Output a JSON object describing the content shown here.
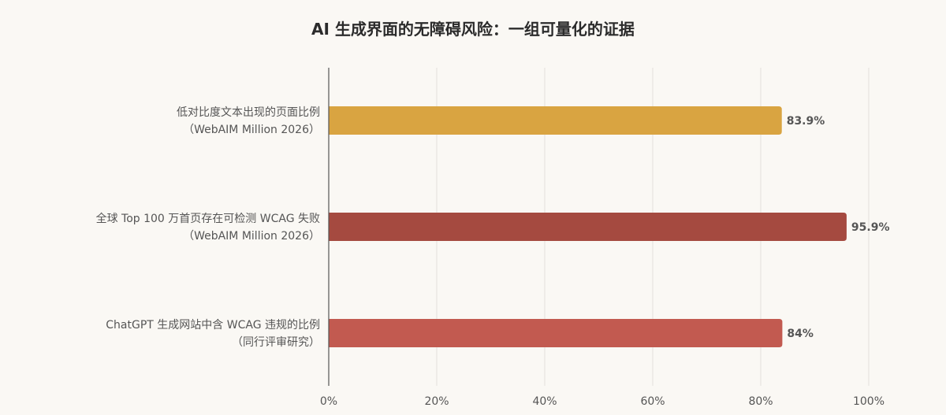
{
  "chart_data": {
    "type": "bar",
    "orientation": "horizontal",
    "title": "AI 生成界面的无障碍风险：一组可量化的证据",
    "xlabel": "",
    "ylabel": "",
    "xlim": [
      0,
      100
    ],
    "x_tick_values": [
      0,
      20,
      40,
      60,
      80,
      100
    ],
    "x_tick_labels": [
      "0%",
      "20%",
      "40%",
      "60%",
      "80%",
      "100%"
    ],
    "grid": "vertical",
    "legend": "none",
    "categories": [
      {
        "line1": "低对比度文本出现的页面比例",
        "line2": "（WebAIM Million 2026）",
        "value": 83.9,
        "value_label": "83.9%",
        "color": "#d9a441"
      },
      {
        "line1": "全球 Top 100 万首页存在可检测 WCAG 失败",
        "line2": "（WebAIM Million 2026）",
        "value": 95.9,
        "value_label": "95.9%",
        "color": "#a54a40"
      },
      {
        "line1": "ChatGPT 生成网站中含 WCAG 违规的比例",
        "line2": "（同行评审研究）",
        "value": 84,
        "value_label": "84%",
        "color": "#c25a50"
      }
    ]
  }
}
